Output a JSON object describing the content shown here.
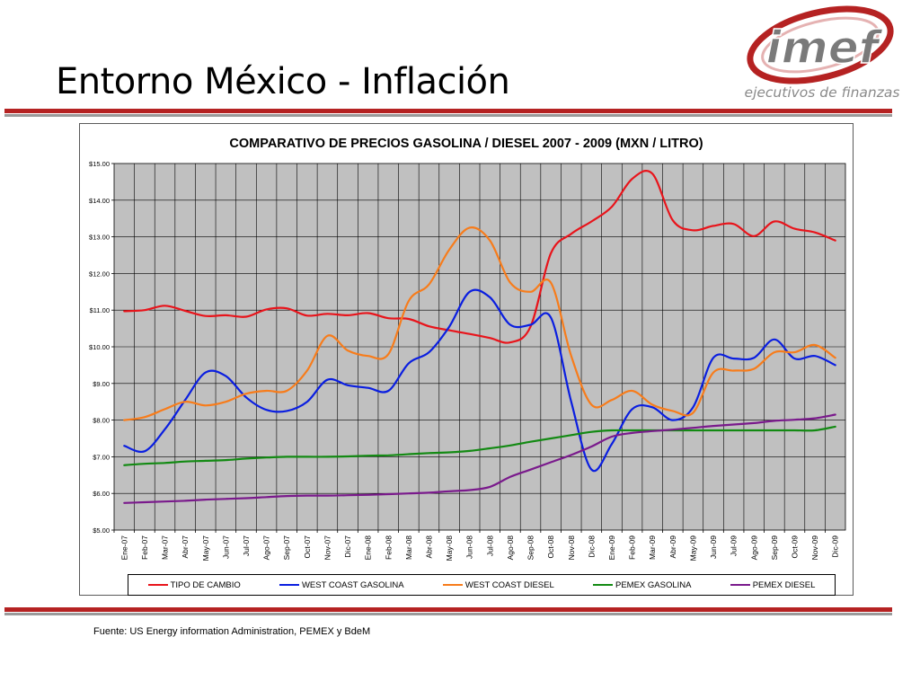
{
  "slide": {
    "title": "Entorno México - Inflación",
    "logo_text": "imef",
    "logo_tagline": "ejecutivos de finanzas",
    "source": "Fuente: US Energy information Administration, PEMEX y BdeM"
  },
  "colors": {
    "accent_red": "#b52222",
    "plot_background": "#c0c0c0",
    "gridline": "#000000"
  },
  "chart_data": {
    "type": "line",
    "title": "COMPARATIVO DE PRECIOS GASOLINA / DIESEL 2007 - 2009  (MXN / LITRO)",
    "xlabel": "",
    "ylabel": "",
    "ylim": [
      5,
      15
    ],
    "yticks": [
      "$5.00",
      "$6.00",
      "$7.00",
      "$8.00",
      "$9.00",
      "$10.00",
      "$11.00",
      "$12.00",
      "$13.00",
      "$14.00",
      "$15.00"
    ],
    "grid": true,
    "legend_position": "bottom",
    "categories": [
      "Ene-07",
      "Feb-07",
      "Mar-07",
      "Abr-07",
      "May-07",
      "Jun-07",
      "Jul-07",
      "Ago-07",
      "Sep-07",
      "Oct-07",
      "Nov-07",
      "Dic-07",
      "Ene-08",
      "Feb-08",
      "Mar-08",
      "Abr-08",
      "May-08",
      "Jun-08",
      "Jul-08",
      "Ago-08",
      "Sep-08",
      "Oct-08",
      "Nov-08",
      "Dic-08",
      "Ene-09",
      "Feb-09",
      "Mar-09",
      "Abr-09",
      "May-09",
      "Jun-09",
      "Jul-09",
      "Ago-09",
      "Sep-09",
      "Oct-09",
      "Nov-09",
      "Dic-09"
    ],
    "series": [
      {
        "name": "TIPO DE CAMBIO",
        "color": "#e8141b",
        "values": [
          10.97,
          11.0,
          11.12,
          10.98,
          10.84,
          10.86,
          10.82,
          11.02,
          11.05,
          10.85,
          10.9,
          10.86,
          10.92,
          10.78,
          10.76,
          10.56,
          10.45,
          10.35,
          10.24,
          10.12,
          10.55,
          12.55,
          13.08,
          13.42,
          13.82,
          14.58,
          14.72,
          13.45,
          13.18,
          13.3,
          13.35,
          13.02,
          13.42,
          13.22,
          13.12,
          12.9
        ]
      },
      {
        "name": "WEST COAST GASOLINA",
        "color": "#0a1ee0",
        "values": [
          7.3,
          7.15,
          7.75,
          8.55,
          9.3,
          9.2,
          8.62,
          8.28,
          8.25,
          8.5,
          9.1,
          8.95,
          8.88,
          8.8,
          9.55,
          9.85,
          10.55,
          11.5,
          11.35,
          10.6,
          10.6,
          10.8,
          8.5,
          6.65,
          7.35,
          8.3,
          8.35,
          8.0,
          8.35,
          9.7,
          9.68,
          9.7,
          10.2,
          9.68,
          9.75,
          9.5
        ]
      },
      {
        "name": "WEST COAST DIESEL",
        "color": "#f77c1b",
        "values": [
          8.0,
          8.08,
          8.3,
          8.5,
          8.4,
          8.5,
          8.72,
          8.8,
          8.8,
          9.35,
          10.3,
          9.9,
          9.75,
          9.8,
          11.25,
          11.7,
          12.65,
          13.25,
          12.9,
          11.75,
          11.5,
          11.75,
          9.75,
          8.42,
          8.55,
          8.8,
          8.42,
          8.25,
          8.2,
          9.3,
          9.35,
          9.4,
          9.85,
          9.85,
          10.05,
          9.7
        ]
      },
      {
        "name": "PEMEX GASOLINA",
        "color": "#138a13",
        "values": [
          6.77,
          6.81,
          6.83,
          6.87,
          6.89,
          6.91,
          6.95,
          6.98,
          7.0,
          7.0,
          7.0,
          7.01,
          7.03,
          7.04,
          7.07,
          7.1,
          7.12,
          7.16,
          7.23,
          7.31,
          7.41,
          7.5,
          7.59,
          7.68,
          7.72,
          7.72,
          7.72,
          7.72,
          7.72,
          7.72,
          7.72,
          7.72,
          7.72,
          7.72,
          7.72,
          7.82
        ]
      },
      {
        "name": "PEMEX DIESEL",
        "color": "#7a1a8c",
        "values": [
          5.74,
          5.76,
          5.78,
          5.8,
          5.83,
          5.85,
          5.87,
          5.9,
          5.93,
          5.94,
          5.94,
          5.95,
          5.96,
          5.98,
          6.0,
          6.02,
          6.06,
          6.09,
          6.18,
          6.45,
          6.65,
          6.85,
          7.05,
          7.28,
          7.55,
          7.65,
          7.7,
          7.74,
          7.79,
          7.84,
          7.88,
          7.92,
          7.98,
          8.01,
          8.05,
          8.15
        ]
      }
    ]
  }
}
